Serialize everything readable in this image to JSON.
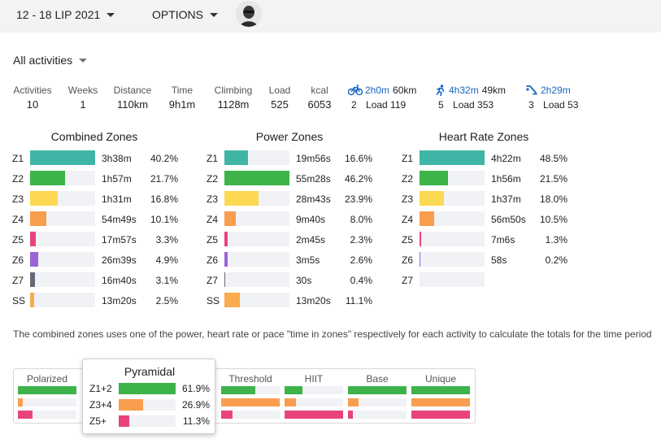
{
  "topbar": {
    "date_range": "12 - 18 LIP 2021",
    "options": "OPTIONS"
  },
  "filter": {
    "label": "All activities"
  },
  "stats": [
    {
      "label": "Activities",
      "value": "10"
    },
    {
      "label": "Weeks",
      "value": "1"
    },
    {
      "label": "Distance",
      "value": "110km"
    },
    {
      "label": "Time",
      "value": "9h1m"
    },
    {
      "label": "Climbing",
      "value": "1128m"
    },
    {
      "label": "Load",
      "value": "525"
    },
    {
      "label": "kcal",
      "value": "6053"
    }
  ],
  "sports": [
    {
      "icon": "bike-icon",
      "time": "2h0m",
      "distance": "60km",
      "count": "2",
      "load": "Load 119"
    },
    {
      "icon": "run-icon",
      "time": "4h32m",
      "distance": "49km",
      "count": "5",
      "load": "Load 353"
    },
    {
      "icon": "swim-icon",
      "time": "2h29m",
      "distance": "",
      "count": "3",
      "load": "Load 53"
    }
  ],
  "colors": {
    "Z1": "#3fb6a5",
    "Z2": "#3db34a",
    "Z3": "#fdd853",
    "Z4": "#f99e4e",
    "Z5": "#e8447a",
    "Z6": "#9b63d8",
    "Z7": "#666a78",
    "SS": "#f9ac4b",
    "time_link": "#1565c0"
  },
  "zones": {
    "combined": {
      "title": "Combined Zones",
      "rows": [
        {
          "zone": "Z1",
          "time": "3h38m",
          "pct": "40.2%",
          "frac": 1.0
        },
        {
          "zone": "Z2",
          "time": "1h57m",
          "pct": "21.7%",
          "frac": 0.54
        },
        {
          "zone": "Z3",
          "time": "1h31m",
          "pct": "16.8%",
          "frac": 0.42
        },
        {
          "zone": "Z4",
          "time": "54m49s",
          "pct": "10.1%",
          "frac": 0.25
        },
        {
          "zone": "Z5",
          "time": "17m57s",
          "pct": "3.3%",
          "frac": 0.09
        },
        {
          "zone": "Z6",
          "time": "26m39s",
          "pct": "4.9%",
          "frac": 0.12
        },
        {
          "zone": "Z7",
          "time": "16m40s",
          "pct": "3.1%",
          "frac": 0.08
        },
        {
          "zone": "SS",
          "time": "13m20s",
          "pct": "2.5%",
          "frac": 0.06
        }
      ]
    },
    "power": {
      "title": "Power Zones",
      "rows": [
        {
          "zone": "Z1",
          "time": "19m56s",
          "pct": "16.6%",
          "frac": 0.36
        },
        {
          "zone": "Z2",
          "time": "55m28s",
          "pct": "46.2%",
          "frac": 1.0
        },
        {
          "zone": "Z3",
          "time": "28m43s",
          "pct": "23.9%",
          "frac": 0.52
        },
        {
          "zone": "Z4",
          "time": "9m40s",
          "pct": "8.0%",
          "frac": 0.17
        },
        {
          "zone": "Z5",
          "time": "2m45s",
          "pct": "2.3%",
          "frac": 0.05
        },
        {
          "zone": "Z6",
          "time": "3m5s",
          "pct": "2.6%",
          "frac": 0.056
        },
        {
          "zone": "Z7",
          "time": "30s",
          "pct": "0.4%",
          "frac": 0.01
        },
        {
          "zone": "SS",
          "time": "13m20s",
          "pct": "11.1%",
          "frac": 0.24
        }
      ]
    },
    "heart": {
      "title": "Heart Rate Zones",
      "rows": [
        {
          "zone": "Z1",
          "time": "4h22m",
          "pct": "48.5%",
          "frac": 1.0
        },
        {
          "zone": "Z2",
          "time": "1h56m",
          "pct": "21.5%",
          "frac": 0.44
        },
        {
          "zone": "Z3",
          "time": "1h37m",
          "pct": "18.0%",
          "frac": 0.37
        },
        {
          "zone": "Z4",
          "time": "56m50s",
          "pct": "10.5%",
          "frac": 0.22
        },
        {
          "zone": "Z5",
          "time": "7m6s",
          "pct": "1.3%",
          "frac": 0.03
        },
        {
          "zone": "Z6",
          "time": "58s",
          "pct": "0.2%",
          "frac": 0.004
        },
        {
          "zone": "Z7",
          "time": "",
          "pct": "",
          "frac": 0
        }
      ]
    }
  },
  "note": "The combined zones uses one of the power, heart rate or pace \"time in zones\" respectively for each activity to calculate the totals for the time period",
  "distributions": [
    {
      "name": "Polarized",
      "bars": [
        1.0,
        0.08,
        0.25
      ]
    },
    {
      "name": "Threshold",
      "bars": [
        0.58,
        1.0,
        0.2
      ]
    },
    {
      "name": "HIIT",
      "bars": [
        0.3,
        0.2,
        1.0
      ]
    },
    {
      "name": "Base",
      "bars": [
        1.0,
        0.18,
        0.08
      ]
    },
    {
      "name": "Unique",
      "bars": [
        1.0,
        1.0,
        1.0
      ]
    }
  ],
  "popup": {
    "title": "Pyramidal",
    "rows": [
      {
        "label": "Z1+2",
        "pct": "61.9%",
        "frac": 1.0,
        "color": "#3db34a"
      },
      {
        "label": "Z3+4",
        "pct": "26.9%",
        "frac": 0.43,
        "color": "#f99e4e"
      },
      {
        "label": "Z5+",
        "pct": "11.3%",
        "frac": 0.18,
        "color": "#e8447a"
      }
    ]
  }
}
